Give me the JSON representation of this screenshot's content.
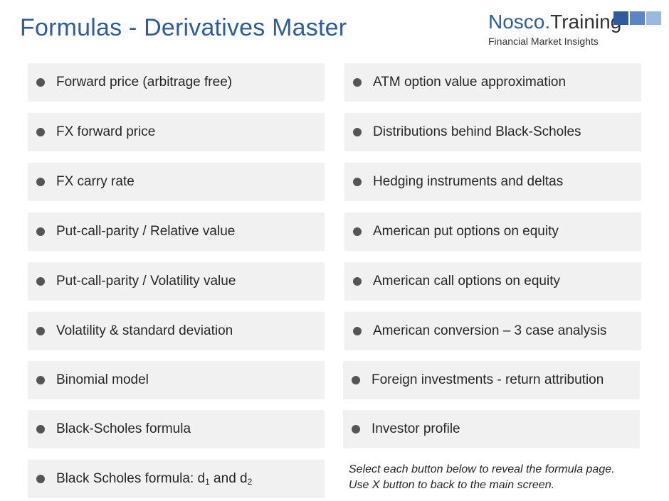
{
  "header": {
    "title": "Formulas - Derivatives Master"
  },
  "logo": {
    "brand": "Nosco",
    "dot": ".",
    "suffix": "Training",
    "tagline": "Financial Market Insights",
    "square_colors": [
      "#2e5c9e",
      "#5b86c4",
      "#9bb8e0"
    ]
  },
  "colors": {
    "accent": "#2e5c9e",
    "button_bg": "#f1f1f1",
    "bullet": "#555555",
    "text": "#262626"
  },
  "left_column": [
    {
      "label": "Forward price (arbitrage free)"
    },
    {
      "label": "FX forward price"
    },
    {
      "label": "FX carry rate"
    },
    {
      "label": "Put-call-parity / Relative value"
    },
    {
      "label": "Put-call-parity / Volatility value"
    },
    {
      "label": "Volatility & standard deviation"
    },
    {
      "label": "Binomial model"
    },
    {
      "label": "Black-Scholes formula"
    },
    {
      "label_main": "Black Scholes formula: d",
      "sub1": "1",
      "label_mid": " and  d",
      "sub2": "2"
    }
  ],
  "right_column": [
    {
      "label": "ATM option value approximation"
    },
    {
      "label": "Distributions behind Black-Scholes"
    },
    {
      "label": "Hedging instruments and deltas"
    },
    {
      "label": "American put options on equity"
    },
    {
      "label": "American call options on equity"
    },
    {
      "label": "American conversion – 3 case analysis"
    },
    {
      "label": "Foreign investments - return attribution"
    },
    {
      "label": "Investor profile"
    }
  ],
  "instructions": {
    "line1": "Select each button below to reveal the formula page.",
    "line2": "Use X button to back to the main screen."
  }
}
